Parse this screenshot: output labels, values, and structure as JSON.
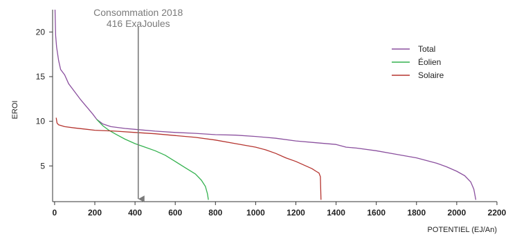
{
  "chart_data": {
    "type": "line",
    "xlabel": "POTENTIEL (EJ/An)",
    "ylabel": "EROI",
    "xlim": [
      -10,
      2200
    ],
    "ylim": [
      1,
      22.5
    ],
    "x_ticks": [
      0,
      200,
      400,
      600,
      800,
      1000,
      1200,
      1400,
      1600,
      1800,
      2000,
      2200
    ],
    "y_ticks": [
      5,
      10,
      15,
      20
    ],
    "grid": false,
    "legend": {
      "position": "top-right"
    },
    "annotation": {
      "lines": [
        "Consommation 2018",
        "416 ExaJoules"
      ],
      "x": 416,
      "y_from": 20.6,
      "y_to": 1.3,
      "color": "#7a7a7a"
    },
    "series": [
      {
        "name": "Total",
        "color": "#8a4f9e",
        "points": [
          [
            2,
            22.5
          ],
          [
            5,
            19.6
          ],
          [
            10,
            18.3
          ],
          [
            20,
            16.8
          ],
          [
            30,
            15.8
          ],
          [
            50,
            15.2
          ],
          [
            70,
            14.2
          ],
          [
            100,
            13.3
          ],
          [
            130,
            12.4
          ],
          [
            160,
            11.6
          ],
          [
            190,
            10.8
          ],
          [
            210,
            10.2
          ],
          [
            240,
            9.7
          ],
          [
            280,
            9.4
          ],
          [
            350,
            9.2
          ],
          [
            400,
            9.1
          ],
          [
            500,
            8.9
          ],
          [
            600,
            8.75
          ],
          [
            700,
            8.65
          ],
          [
            800,
            8.5
          ],
          [
            900,
            8.45
          ],
          [
            1000,
            8.3
          ],
          [
            1100,
            8.1
          ],
          [
            1200,
            7.8
          ],
          [
            1300,
            7.6
          ],
          [
            1400,
            7.4
          ],
          [
            1450,
            7.1
          ],
          [
            1500,
            7.0
          ],
          [
            1600,
            6.7
          ],
          [
            1700,
            6.3
          ],
          [
            1800,
            5.9
          ],
          [
            1900,
            5.3
          ],
          [
            1950,
            4.9
          ],
          [
            2000,
            4.4
          ],
          [
            2040,
            3.9
          ],
          [
            2070,
            3.2
          ],
          [
            2085,
            2.4
          ],
          [
            2095,
            1.2
          ]
        ]
      },
      {
        "name": "Éolien",
        "color": "#34b24f",
        "points": [
          [
            210,
            10.2
          ],
          [
            240,
            9.5
          ],
          [
            270,
            9.0
          ],
          [
            300,
            8.6
          ],
          [
            350,
            8.0
          ],
          [
            400,
            7.5
          ],
          [
            450,
            7.1
          ],
          [
            500,
            6.7
          ],
          [
            550,
            6.2
          ],
          [
            600,
            5.5
          ],
          [
            650,
            4.8
          ],
          [
            700,
            4.1
          ],
          [
            730,
            3.4
          ],
          [
            750,
            2.7
          ],
          [
            760,
            1.9
          ],
          [
            765,
            1.2
          ]
        ]
      },
      {
        "name": "Solaire",
        "color": "#b5342f",
        "points": [
          [
            8,
            10.4
          ],
          [
            12,
            9.8
          ],
          [
            20,
            9.6
          ],
          [
            50,
            9.4
          ],
          [
            100,
            9.25
          ],
          [
            200,
            9.0
          ],
          [
            300,
            8.9
          ],
          [
            400,
            8.75
          ],
          [
            500,
            8.6
          ],
          [
            600,
            8.4
          ],
          [
            700,
            8.2
          ],
          [
            800,
            7.9
          ],
          [
            900,
            7.5
          ],
          [
            1000,
            7.1
          ],
          [
            1050,
            6.8
          ],
          [
            1100,
            6.4
          ],
          [
            1150,
            5.9
          ],
          [
            1200,
            5.5
          ],
          [
            1250,
            5.0
          ],
          [
            1280,
            4.7
          ],
          [
            1300,
            4.4
          ],
          [
            1315,
            4.2
          ],
          [
            1322,
            3.8
          ],
          [
            1325,
            1.2
          ]
        ]
      }
    ]
  }
}
